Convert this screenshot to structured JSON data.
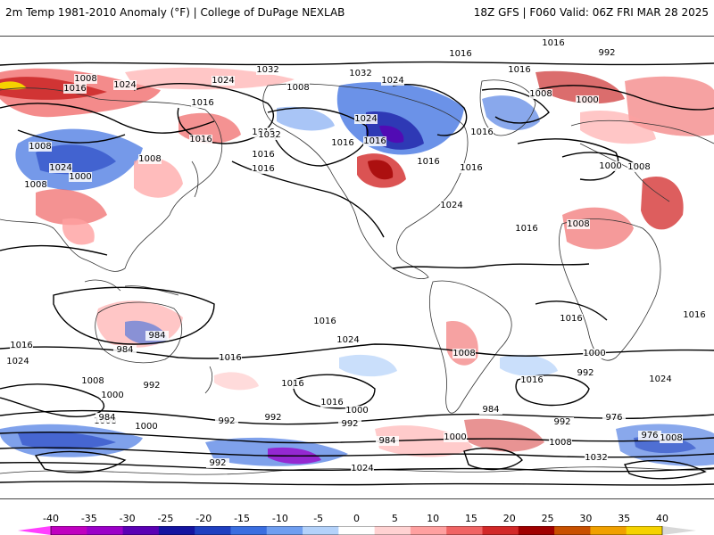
{
  "header": {
    "left": "2m Temp 1981-2010 Anomaly (°F) | College of DuPage NEXLAB",
    "right": "18Z GFS | F060 Valid: 06Z FRI MAR 28 2025"
  },
  "map": {
    "projection": "cylindrical equidistant, global",
    "field": "2m temperature anomaly",
    "contours": "sea level pressure (mb)",
    "contour_interval_mb": 8,
    "pressure_labels": [
      "1024",
      "1000",
      "992",
      "1016",
      "1008",
      "1016",
      "1024",
      "1032",
      "1024",
      "1032",
      "1024",
      "1008",
      "1016",
      "1016",
      "1016",
      "1016",
      "1024",
      "1016",
      "1008",
      "1000",
      "1024",
      "1008",
      "1008",
      "1016",
      "1016",
      "1016",
      "1000",
      "1008",
      "1032",
      "1016",
      "1016",
      "1016",
      "1024",
      "1016",
      "1008",
      "1016",
      "1016",
      "1008",
      "1016",
      "1016",
      "1016",
      "1024",
      "1024",
      "1008",
      "1016",
      "1000",
      "1008",
      "992",
      "1016",
      "1000",
      "992",
      "992",
      "1016",
      "984",
      "1000",
      "992",
      "984",
      "984",
      "1000",
      "992",
      "1016",
      "1024",
      "992",
      "984",
      "976",
      "984",
      "1008",
      "1000",
      "976",
      "992",
      "1008",
      "1024",
      "1032",
      "1016",
      "1000",
      "1008",
      "1016"
    ]
  },
  "colorbar": {
    "ticks": [
      "-40",
      "-35",
      "-30",
      "-25",
      "-20",
      "-15",
      "-10",
      "-5",
      "0",
      "5",
      "10",
      "15",
      "20",
      "25",
      "30",
      "35",
      "40"
    ],
    "colors": [
      "#c000c0",
      "#9b00c8",
      "#5a00b4",
      "#1414a0",
      "#1f3fc0",
      "#3a6ee0",
      "#6f9ef0",
      "#b4d2fa",
      "#ffffff",
      "#ffd2d2",
      "#ffa0a0",
      "#f06464",
      "#d22828",
      "#a00000",
      "#c85000",
      "#f0a000",
      "#f5d200"
    ],
    "zero_color": "#ffffff"
  }
}
